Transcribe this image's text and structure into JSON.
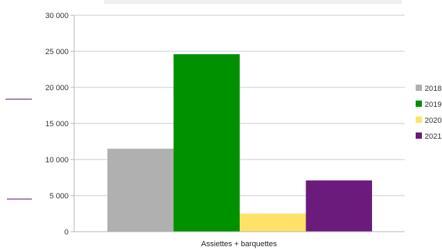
{
  "chart_data": {
    "type": "bar",
    "categories": [
      "Assiettes + barquettes"
    ],
    "series": [
      {
        "name": "2018",
        "values": [
          11500
        ],
        "color": "#b0b0b0"
      },
      {
        "name": "2019",
        "values": [
          24600
        ],
        "color": "#009100"
      },
      {
        "name": "2020",
        "values": [
          2500
        ],
        "color": "#fde267"
      },
      {
        "name": "2021",
        "values": [
          7100
        ],
        "color": "#6a1b7b"
      }
    ],
    "yticks": [
      "0",
      "5 000",
      "10 000",
      "15 000",
      "20 000",
      "25 000",
      "30 000"
    ],
    "ylim": [
      0,
      30000
    ],
    "grid": true,
    "legend_position": "right"
  }
}
